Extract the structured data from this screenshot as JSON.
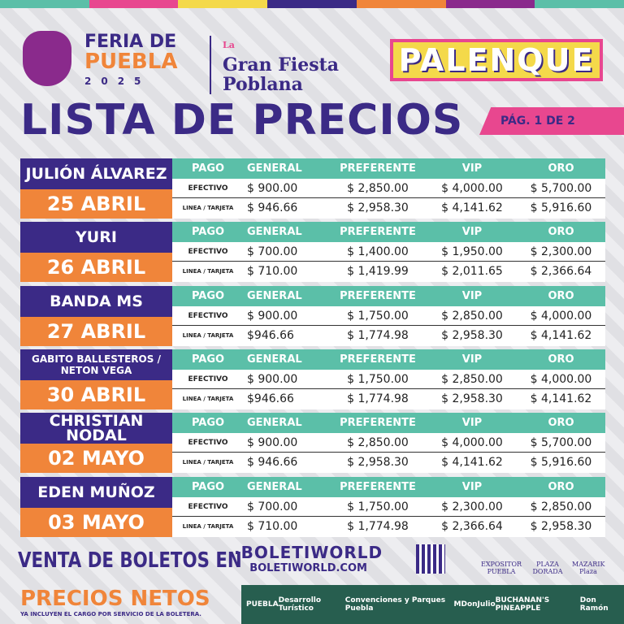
{
  "header": {
    "stripe_colors": [
      "#5bbfa8",
      "#e8478f",
      "#f4d94a",
      "#3b2a86",
      "#f0853a",
      "#8a2a8c",
      "#5bbfa8"
    ],
    "feria_line1": "FERIA DE",
    "feria_line2": "PUEBLA",
    "feria_year": "2025",
    "fiesta_la": "La",
    "fiesta_line1": "Gran Fiesta",
    "fiesta_line2": "Poblana",
    "palenque": "PALENQUE",
    "title": "LISTA DE PRECIOS",
    "page": "PÁG. 1 DE 2"
  },
  "columns": [
    "PAGO",
    "GENERAL",
    "PREFERENTE",
    "VIP",
    "ORO"
  ],
  "pay_methods": [
    "EFECTIVO",
    "LINEA / TARJETA"
  ],
  "events": [
    {
      "artist": "JULIÓN ÁLVAREZ",
      "date": "25 ABRIL",
      "efectivo": [
        "$ 900.00",
        "$ 2,850.00",
        "$ 4,000.00",
        "$ 5,700.00"
      ],
      "linea": [
        "$ 946.66",
        "$ 2,958.30",
        "$ 4,141.62",
        "$ 5,916.60"
      ]
    },
    {
      "artist": "YURI",
      "date": "26 ABRIL",
      "efectivo": [
        "$ 700.00",
        "$ 1,400.00",
        "$ 1,950.00",
        "$ 2,300.00"
      ],
      "linea": [
        "$ 710.00",
        "$ 1,419.99",
        "$ 2,011.65",
        "$ 2,366.64"
      ]
    },
    {
      "artist": "BANDA MS",
      "date": "27 ABRIL",
      "efectivo": [
        "$ 900.00",
        "$ 1,750.00",
        "$ 2,850.00",
        "$ 4,000.00"
      ],
      "linea": [
        "$946.66",
        "$ 1,774.98",
        "$ 2,958.30",
        "$ 4,141.62"
      ]
    },
    {
      "artist": "GABITO BALLESTEROS / NETON VEGA",
      "date": "30 ABRIL",
      "efectivo": [
        "$ 900.00",
        "$ 1,750.00",
        "$ 2,850.00",
        "$ 4,000.00"
      ],
      "linea": [
        "$946.66",
        "$ 1,774.98",
        "$ 2,958.30",
        "$ 4,141.62"
      ]
    },
    {
      "artist": "CHRISTIAN NODAL",
      "date": "02 MAYO",
      "efectivo": [
        "$ 900.00",
        "$ 2,850.00",
        "$ 4,000.00",
        "$ 5,700.00"
      ],
      "linea": [
        "$ 946.66",
        "$ 2,958.30",
        "$ 4,141.62",
        "$ 5,916.60"
      ]
    },
    {
      "artist": "EDEN MUÑOZ",
      "date": "03 MAYO",
      "efectivo": [
        "$ 700.00",
        "$ 1,750.00",
        "$ 2,300.00",
        "$ 2,850.00"
      ],
      "linea": [
        "$ 710.00",
        "$ 1,774.98",
        "$ 2,366.64",
        "$ 2,958.30"
      ]
    }
  ],
  "footer": {
    "venta": "VENTA DE BOLETOS EN",
    "boletiworld_logo": "·BOLETIWORLD",
    "boletiworld_url": "BOLETIWORLD.COM",
    "venues": [
      "EXPOSITOR PUEBLA",
      "PLAZA DORADA",
      "MAZARIK Plaza"
    ],
    "precios_netos": "PRECIOS NETOS",
    "incluyen": "YA INCLUYEN EL CARGO POR SERVICIO DE LA BOLETERA.",
    "sponsors": [
      "PUEBLA",
      "Desarrollo Turístico",
      "Convenciones y Parques Puebla",
      "M",
      "DonJulio",
      "BUCHANAN'S PINEAPPLE",
      "Don Ramón"
    ]
  }
}
